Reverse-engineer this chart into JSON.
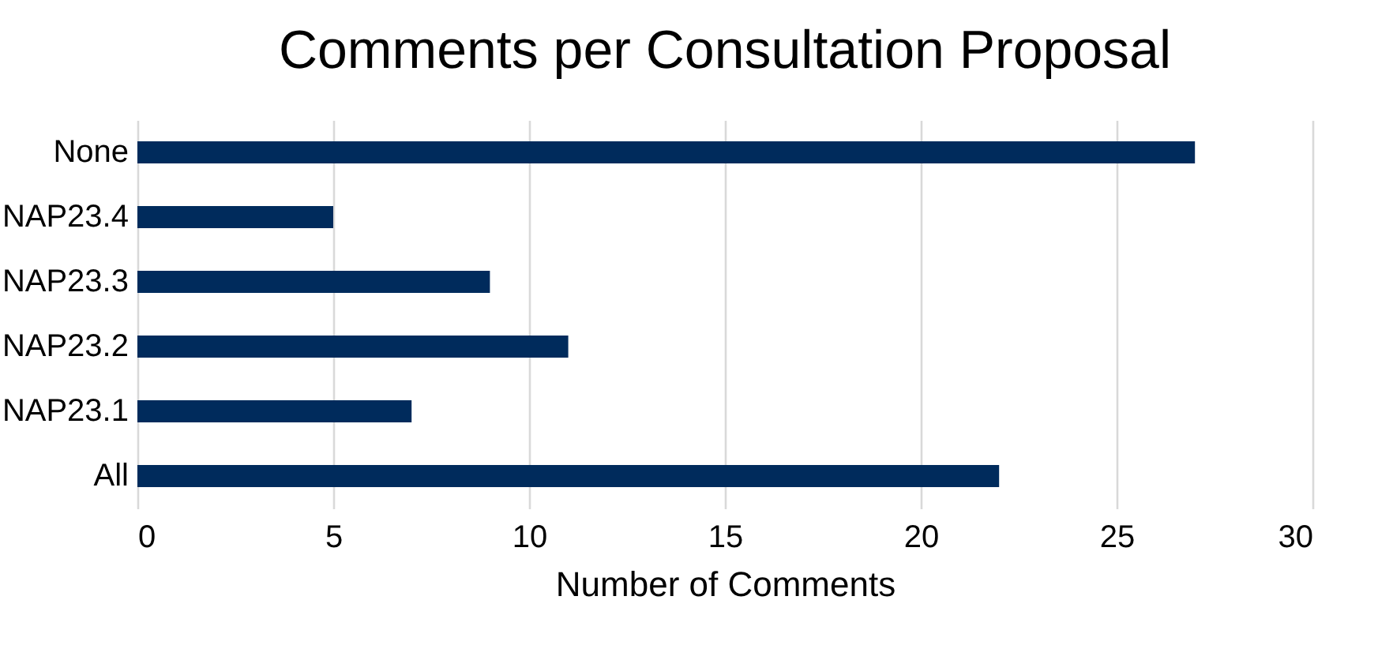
{
  "chart_data": {
    "type": "bar",
    "orientation": "horizontal",
    "title": "Comments per Consultation Proposal",
    "xlabel": "Number of Comments",
    "categories": [
      "None",
      "NAP23.4",
      "NAP23.3",
      "NAP23.2",
      "NAP23.1",
      "All"
    ],
    "values": [
      27,
      5,
      9,
      11,
      7,
      22
    ],
    "color": "#002b5c",
    "xlim": [
      0,
      30
    ],
    "xticks": [
      0,
      5,
      10,
      15,
      20,
      25,
      30
    ],
    "grid": "x"
  }
}
